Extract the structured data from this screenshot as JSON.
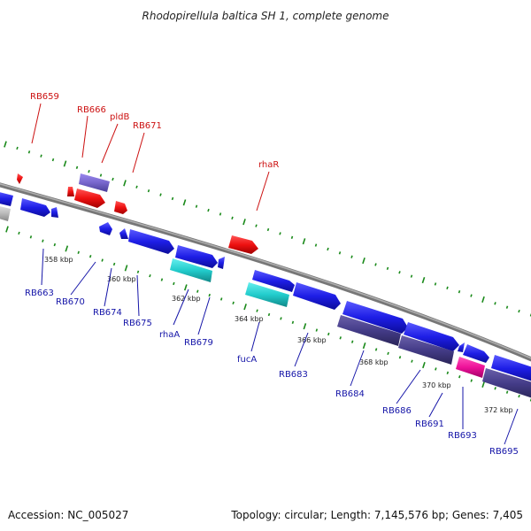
{
  "title": "Rhodopirellula baltica SH 1, complete genome",
  "footer": {
    "accession": "Accession: NC_005027",
    "summary": "Topology: circular; Length: 7,145,576 bp; Genes: 7,405"
  },
  "colors": {
    "forward": "#2222ee",
    "reverse": "#ee1111",
    "rna_cyan": "#22cccc",
    "misc_purple": "#7766cc",
    "dark_purple": "#443c88",
    "magenta": "#ee1199",
    "grey": "#bbbbbb",
    "backbone": "#888888",
    "tick": "#1a8a1a",
    "label_forward": "#1515a8",
    "label_reverse": "#cc1111"
  },
  "scale_labels": [
    "358 kbp",
    "360 kbp",
    "362 kbp",
    "364 kbp",
    "366 kbp",
    "368 kbp",
    "370 kbp",
    "372 kbp"
  ],
  "gene_labels": {
    "reverse": [
      "RB659",
      "RB666",
      "pldB",
      "RB671",
      "rhaR"
    ],
    "forward": [
      "RB663",
      "RB670",
      "RB674",
      "RB675",
      "rhaA",
      "RB679",
      "fucA",
      "RB683",
      "RB684",
      "RB686",
      "RB691",
      "RB693",
      "RB695"
    ]
  }
}
